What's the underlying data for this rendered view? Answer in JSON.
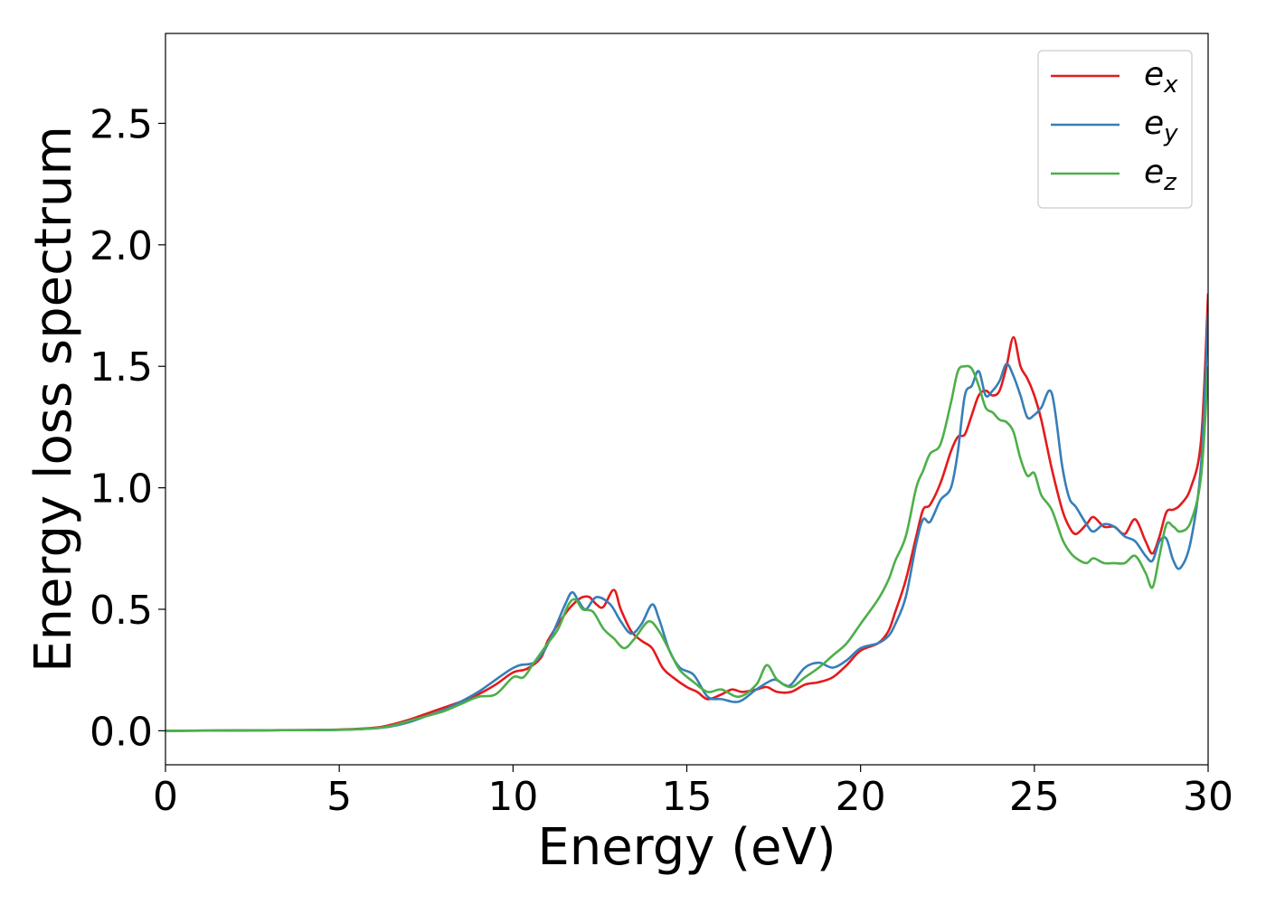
{
  "chart_data": {
    "type": "line",
    "xlabel": "Energy (eV)",
    "ylabel": "Energy loss spectrum",
    "xlim": [
      0,
      30
    ],
    "ylim": [
      -0.14,
      2.87
    ],
    "xticks": [
      0,
      5,
      10,
      15,
      20,
      25,
      30
    ],
    "xtick_labels": [
      "0",
      "5",
      "10",
      "15",
      "20",
      "25",
      "30"
    ],
    "yticks": [
      0.0,
      0.5,
      1.0,
      1.5,
      2.0,
      2.5
    ],
    "ytick_labels": [
      "0.0",
      "0.5",
      "1.0",
      "1.5",
      "2.0",
      "2.5"
    ],
    "grid": false,
    "legend_position": "top-right",
    "series": [
      {
        "name": "e",
        "subscript": "x",
        "color": "#e41a1c",
        "points": [
          [
            0,
            0
          ],
          [
            3,
            0.002
          ],
          [
            5,
            0.005
          ],
          [
            6,
            0.012
          ],
          [
            6.5,
            0.025
          ],
          [
            7,
            0.045
          ],
          [
            7.5,
            0.07
          ],
          [
            8,
            0.095
          ],
          [
            8.5,
            0.12
          ],
          [
            9,
            0.15
          ],
          [
            9.5,
            0.19
          ],
          [
            10,
            0.24
          ],
          [
            10.4,
            0.255
          ],
          [
            10.8,
            0.3
          ],
          [
            11,
            0.37
          ],
          [
            11.3,
            0.44
          ],
          [
            11.6,
            0.5
          ],
          [
            11.8,
            0.53
          ],
          [
            12,
            0.55
          ],
          [
            12.2,
            0.55
          ],
          [
            12.4,
            0.52
          ],
          [
            12.6,
            0.51
          ],
          [
            12.9,
            0.58
          ],
          [
            13.1,
            0.5
          ],
          [
            13.4,
            0.41
          ],
          [
            13.7,
            0.37
          ],
          [
            14,
            0.34
          ],
          [
            14.3,
            0.26
          ],
          [
            14.6,
            0.22
          ],
          [
            15,
            0.18
          ],
          [
            15.3,
            0.16
          ],
          [
            15.6,
            0.13
          ],
          [
            16,
            0.15
          ],
          [
            16.3,
            0.17
          ],
          [
            16.6,
            0.16
          ],
          [
            17,
            0.17
          ],
          [
            17.3,
            0.18
          ],
          [
            17.6,
            0.16
          ],
          [
            18,
            0.16
          ],
          [
            18.4,
            0.19
          ],
          [
            18.8,
            0.2
          ],
          [
            19.2,
            0.22
          ],
          [
            19.6,
            0.27
          ],
          [
            20,
            0.33
          ],
          [
            20.5,
            0.36
          ],
          [
            20.8,
            0.41
          ],
          [
            21,
            0.49
          ],
          [
            21.3,
            0.62
          ],
          [
            21.6,
            0.8
          ],
          [
            21.8,
            0.91
          ],
          [
            22,
            0.93
          ],
          [
            22.3,
            1.02
          ],
          [
            22.6,
            1.15
          ],
          [
            22.8,
            1.21
          ],
          [
            23,
            1.22
          ],
          [
            23.2,
            1.3
          ],
          [
            23.4,
            1.38
          ],
          [
            23.6,
            1.4
          ],
          [
            23.8,
            1.38
          ],
          [
            24,
            1.4
          ],
          [
            24.2,
            1.5
          ],
          [
            24.4,
            1.62
          ],
          [
            24.6,
            1.5
          ],
          [
            24.8,
            1.45
          ],
          [
            25,
            1.38
          ],
          [
            25.2,
            1.28
          ],
          [
            25.5,
            1.08
          ],
          [
            25.8,
            0.91
          ],
          [
            26,
            0.84
          ],
          [
            26.2,
            0.81
          ],
          [
            26.5,
            0.85
          ],
          [
            26.7,
            0.88
          ],
          [
            27,
            0.84
          ],
          [
            27.3,
            0.84
          ],
          [
            27.6,
            0.81
          ],
          [
            27.9,
            0.87
          ],
          [
            28.2,
            0.78
          ],
          [
            28.4,
            0.73
          ],
          [
            28.6,
            0.8
          ],
          [
            28.8,
            0.9
          ],
          [
            29,
            0.91
          ],
          [
            29.2,
            0.93
          ],
          [
            29.5,
            1.0
          ],
          [
            29.8,
            1.2
          ],
          [
            30,
            1.8
          ]
        ]
      },
      {
        "name": "e",
        "subscript": "y",
        "color": "#377eb8",
        "points": [
          [
            0,
            0
          ],
          [
            3,
            0.002
          ],
          [
            5,
            0.004
          ],
          [
            6,
            0.01
          ],
          [
            6.5,
            0.018
          ],
          [
            7,
            0.035
          ],
          [
            7.5,
            0.06
          ],
          [
            8,
            0.085
          ],
          [
            8.5,
            0.12
          ],
          [
            9,
            0.16
          ],
          [
            9.5,
            0.21
          ],
          [
            9.9,
            0.25
          ],
          [
            10.2,
            0.27
          ],
          [
            10.6,
            0.28
          ],
          [
            10.9,
            0.33
          ],
          [
            11.2,
            0.42
          ],
          [
            11.5,
            0.52
          ],
          [
            11.7,
            0.57
          ],
          [
            11.9,
            0.53
          ],
          [
            12.1,
            0.5
          ],
          [
            12.4,
            0.55
          ],
          [
            12.8,
            0.52
          ],
          [
            13.1,
            0.45
          ],
          [
            13.4,
            0.4
          ],
          [
            13.7,
            0.44
          ],
          [
            14,
            0.52
          ],
          [
            14.2,
            0.46
          ],
          [
            14.5,
            0.33
          ],
          [
            14.8,
            0.26
          ],
          [
            15.2,
            0.23
          ],
          [
            15.6,
            0.14
          ],
          [
            16,
            0.13
          ],
          [
            16.5,
            0.12
          ],
          [
            17,
            0.17
          ],
          [
            17.5,
            0.21
          ],
          [
            17.8,
            0.19
          ],
          [
            18,
            0.19
          ],
          [
            18.4,
            0.26
          ],
          [
            18.8,
            0.28
          ],
          [
            19.2,
            0.26
          ],
          [
            19.6,
            0.29
          ],
          [
            20,
            0.34
          ],
          [
            20.5,
            0.36
          ],
          [
            20.8,
            0.39
          ],
          [
            21,
            0.44
          ],
          [
            21.3,
            0.55
          ],
          [
            21.6,
            0.77
          ],
          [
            21.8,
            0.87
          ],
          [
            22,
            0.86
          ],
          [
            22.3,
            0.95
          ],
          [
            22.6,
            1.0
          ],
          [
            22.8,
            1.15
          ],
          [
            23,
            1.38
          ],
          [
            23.2,
            1.42
          ],
          [
            23.4,
            1.48
          ],
          [
            23.6,
            1.38
          ],
          [
            23.8,
            1.4
          ],
          [
            24,
            1.44
          ],
          [
            24.2,
            1.51
          ],
          [
            24.4,
            1.46
          ],
          [
            24.6,
            1.38
          ],
          [
            24.8,
            1.29
          ],
          [
            25,
            1.3
          ],
          [
            25.2,
            1.33
          ],
          [
            25.5,
            1.39
          ],
          [
            25.8,
            1.09
          ],
          [
            26,
            0.96
          ],
          [
            26.2,
            0.92
          ],
          [
            26.5,
            0.85
          ],
          [
            26.7,
            0.82
          ],
          [
            27,
            0.85
          ],
          [
            27.3,
            0.84
          ],
          [
            27.6,
            0.8
          ],
          [
            27.9,
            0.78
          ],
          [
            28.2,
            0.72
          ],
          [
            28.4,
            0.7
          ],
          [
            28.6,
            0.78
          ],
          [
            28.8,
            0.79
          ],
          [
            29,
            0.7
          ],
          [
            29.2,
            0.67
          ],
          [
            29.5,
            0.78
          ],
          [
            29.8,
            1.1
          ],
          [
            30,
            1.72
          ]
        ]
      },
      {
        "name": "e",
        "subscript": "z",
        "color": "#4daf4a",
        "points": [
          [
            0,
            0
          ],
          [
            3,
            0.002
          ],
          [
            5,
            0.004
          ],
          [
            6,
            0.01
          ],
          [
            6.5,
            0.02
          ],
          [
            7,
            0.04
          ],
          [
            7.5,
            0.06
          ],
          [
            8,
            0.08
          ],
          [
            8.5,
            0.11
          ],
          [
            9,
            0.14
          ],
          [
            9.5,
            0.15
          ],
          [
            10,
            0.22
          ],
          [
            10.3,
            0.22
          ],
          [
            10.6,
            0.28
          ],
          [
            11,
            0.36
          ],
          [
            11.3,
            0.42
          ],
          [
            11.6,
            0.52
          ],
          [
            11.8,
            0.54
          ],
          [
            12,
            0.5
          ],
          [
            12.3,
            0.49
          ],
          [
            12.6,
            0.42
          ],
          [
            12.9,
            0.38
          ],
          [
            13.2,
            0.34
          ],
          [
            13.5,
            0.38
          ],
          [
            13.9,
            0.45
          ],
          [
            14.2,
            0.41
          ],
          [
            14.5,
            0.33
          ],
          [
            14.8,
            0.25
          ],
          [
            15.2,
            0.2
          ],
          [
            15.6,
            0.16
          ],
          [
            16,
            0.17
          ],
          [
            16.5,
            0.14
          ],
          [
            17,
            0.19
          ],
          [
            17.3,
            0.27
          ],
          [
            17.6,
            0.21
          ],
          [
            18,
            0.18
          ],
          [
            18.4,
            0.22
          ],
          [
            18.8,
            0.26
          ],
          [
            19.2,
            0.31
          ],
          [
            19.6,
            0.36
          ],
          [
            20,
            0.44
          ],
          [
            20.5,
            0.54
          ],
          [
            20.8,
            0.62
          ],
          [
            21,
            0.7
          ],
          [
            21.3,
            0.8
          ],
          [
            21.6,
            1.0
          ],
          [
            21.8,
            1.07
          ],
          [
            22,
            1.14
          ],
          [
            22.3,
            1.18
          ],
          [
            22.6,
            1.35
          ],
          [
            22.8,
            1.48
          ],
          [
            23,
            1.5
          ],
          [
            23.2,
            1.49
          ],
          [
            23.4,
            1.42
          ],
          [
            23.6,
            1.33
          ],
          [
            23.8,
            1.31
          ],
          [
            24,
            1.28
          ],
          [
            24.2,
            1.27
          ],
          [
            24.4,
            1.23
          ],
          [
            24.6,
            1.12
          ],
          [
            24.8,
            1.05
          ],
          [
            25,
            1.06
          ],
          [
            25.2,
            0.97
          ],
          [
            25.5,
            0.91
          ],
          [
            25.8,
            0.79
          ],
          [
            26,
            0.74
          ],
          [
            26.2,
            0.71
          ],
          [
            26.5,
            0.69
          ],
          [
            26.7,
            0.71
          ],
          [
            27,
            0.69
          ],
          [
            27.3,
            0.69
          ],
          [
            27.6,
            0.69
          ],
          [
            27.9,
            0.72
          ],
          [
            28.2,
            0.65
          ],
          [
            28.4,
            0.59
          ],
          [
            28.6,
            0.72
          ],
          [
            28.8,
            0.85
          ],
          [
            29,
            0.84
          ],
          [
            29.2,
            0.82
          ],
          [
            29.5,
            0.86
          ],
          [
            29.8,
            1.05
          ],
          [
            30,
            1.5
          ]
        ]
      }
    ]
  }
}
